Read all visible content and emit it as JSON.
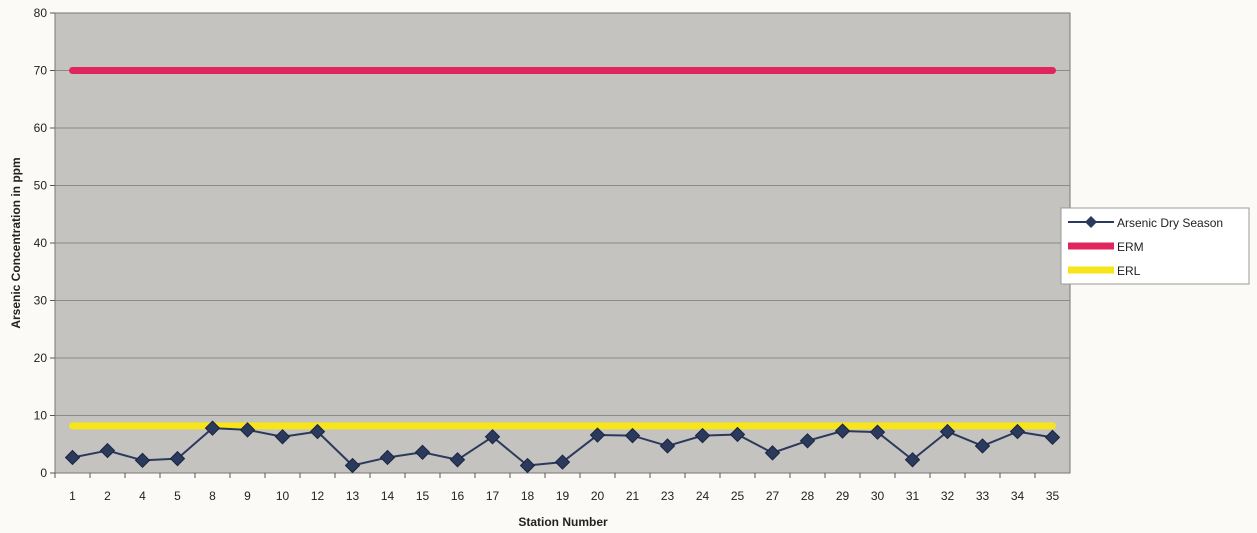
{
  "chart_data": {
    "type": "line",
    "title": "",
    "xlabel": "Station Number",
    "ylabel": "Arsenic Concentration in ppm",
    "categories": [
      "1",
      "2",
      "4",
      "5",
      "8",
      "9",
      "10",
      "12",
      "13",
      "14",
      "15",
      "16",
      "17",
      "18",
      "19",
      "20",
      "21",
      "23",
      "24",
      "25",
      "27",
      "28",
      "29",
      "30",
      "31",
      "32",
      "33",
      "34",
      "35"
    ],
    "ylim": [
      0,
      80
    ],
    "yticks": [
      0,
      10,
      20,
      30,
      40,
      50,
      60,
      70,
      80
    ],
    "grid": true,
    "legend_position": "right",
    "series": [
      {
        "name": "Arsenic Dry Season",
        "color": "#2b3a5c",
        "marker": "diamond",
        "values": [
          2.7,
          3.9,
          2.2,
          2.5,
          7.8,
          7.5,
          6.3,
          7.2,
          1.3,
          2.7,
          3.6,
          2.3,
          6.3,
          1.3,
          1.9,
          6.6,
          6.5,
          4.7,
          6.5,
          6.7,
          3.5,
          5.6,
          7.3,
          7.1,
          2.3,
          7.2,
          4.7,
          7.2,
          6.2
        ]
      },
      {
        "name": "ERM",
        "color": "#e0245e",
        "values": [
          70,
          70,
          70,
          70,
          70,
          70,
          70,
          70,
          70,
          70,
          70,
          70,
          70,
          70,
          70,
          70,
          70,
          70,
          70,
          70,
          70,
          70,
          70,
          70,
          70,
          70,
          70,
          70,
          70
        ]
      },
      {
        "name": "ERL",
        "color": "#f7e41a",
        "values": [
          8.2,
          8.2,
          8.2,
          8.2,
          8.2,
          8.2,
          8.2,
          8.2,
          8.2,
          8.2,
          8.2,
          8.2,
          8.2,
          8.2,
          8.2,
          8.2,
          8.2,
          8.2,
          8.2,
          8.2,
          8.2,
          8.2,
          8.2,
          8.2,
          8.2,
          8.2,
          8.2,
          8.2,
          8.2
        ]
      }
    ],
    "colors": {
      "plot_background": "#c5c3c0",
      "gridline": "#8a8a8a",
      "frame": "#777777"
    }
  }
}
